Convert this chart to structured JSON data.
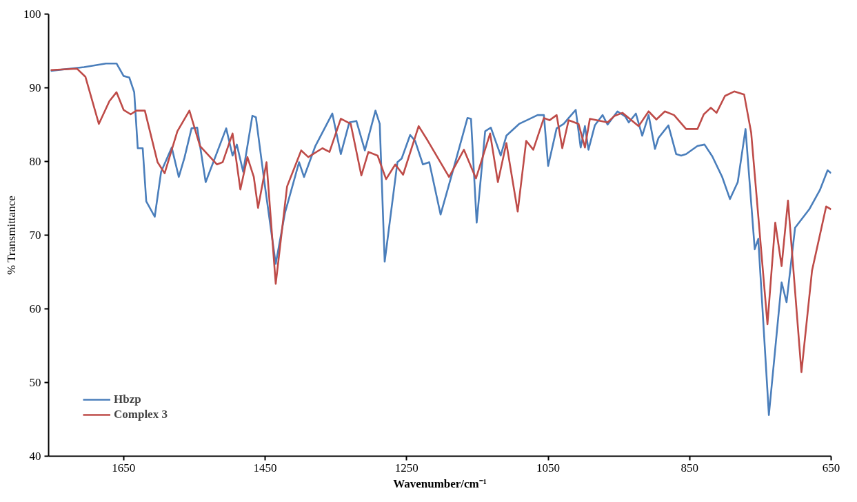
{
  "chart_data": {
    "type": "line",
    "xlabel": "Wavenumber/cm⁻¹",
    "ylabel": "% Transmittance",
    "xlim": [
      1756,
      650
    ],
    "ylim": [
      40,
      100
    ],
    "xticks": [
      1650,
      1450,
      1250,
      1050,
      850,
      650
    ],
    "yticks": [
      40,
      50,
      60,
      70,
      80,
      90,
      100
    ],
    "grid": false,
    "legend": "bottom left",
    "marker": "none",
    "line_style": "solid",
    "series": [
      {
        "name": "Hbzp",
        "color": "#4a7ebb",
        "x": [
          1753,
          1706,
          1675,
          1660,
          1650,
          1642,
          1635,
          1630,
          1623,
          1618,
          1606,
          1597,
          1582,
          1572,
          1564,
          1554,
          1546,
          1534,
          1505,
          1496,
          1490,
          1481,
          1468,
          1463,
          1451,
          1435,
          1422,
          1402,
          1395,
          1379,
          1355,
          1343,
          1331,
          1321,
          1309,
          1294,
          1288,
          1281,
          1263,
          1257,
          1245,
          1238,
          1227,
          1218,
          1202,
          1187,
          1164,
          1159,
          1151,
          1139,
          1131,
          1117,
          1109,
          1091,
          1065,
          1056,
          1050,
          1038,
          1028,
          1021,
          1011,
          1004,
          998,
          993,
          984,
          973,
          966,
          952,
          941,
          936,
          926,
          917,
          908,
          899,
          894,
          880,
          869,
          862,
          855,
          839,
          829,
          818,
          804,
          793,
          782,
          771,
          758,
          753,
          738,
          720,
          713,
          701,
          681,
          666,
          655,
          650
        ],
        "values": [
          92.3,
          92.8,
          93.3,
          93.3,
          91.6,
          91.4,
          89.4,
          81.8,
          81.8,
          74.6,
          72.5,
          78.6,
          81.9,
          77.9,
          80.5,
          84.5,
          84.6,
          77.2,
          84.5,
          80.8,
          82.3,
          78.6,
          86.2,
          86.0,
          77.2,
          66.1,
          73.0,
          79.9,
          77.9,
          82.1,
          86.5,
          81.0,
          85.3,
          85.5,
          81.5,
          86.9,
          85.1,
          66.4,
          79.9,
          80.4,
          83.6,
          82.8,
          79.6,
          79.9,
          72.8,
          77.9,
          85.9,
          85.8,
          71.7,
          84.1,
          84.6,
          80.8,
          83.5,
          85.1,
          86.3,
          86.3,
          79.4,
          84.5,
          85.1,
          85.9,
          87.0,
          81.9,
          84.8,
          81.6,
          84.9,
          86.3,
          85.0,
          86.8,
          86.1,
          85.3,
          86.5,
          83.5,
          86.3,
          81.7,
          83.2,
          84.9,
          81.0,
          80.8,
          81.0,
          82.1,
          82.3,
          80.7,
          77.9,
          74.9,
          77.2,
          84.4,
          68.1,
          69.5,
          45.6,
          63.6,
          60.9,
          71.0,
          73.5,
          76.1,
          78.8,
          78.4
        ]
      },
      {
        "name": "Complex 3",
        "color": "#be4b48",
        "x": [
          1753,
          1716,
          1704,
          1685,
          1670,
          1660,
          1650,
          1640,
          1632,
          1620,
          1602,
          1592,
          1574,
          1557,
          1542,
          1518,
          1510,
          1496,
          1485,
          1475,
          1466,
          1460,
          1448,
          1435,
          1419,
          1399,
          1389,
          1369,
          1359,
          1343,
          1329,
          1314,
          1304,
          1291,
          1279,
          1266,
          1255,
          1233,
          1220,
          1190,
          1169,
          1152,
          1132,
          1121,
          1109,
          1093,
          1081,
          1071,
          1056,
          1048,
          1038,
          1030,
          1021,
          1007,
          998,
          991,
          966,
          956,
          945,
          922,
          908,
          897,
          885,
          872,
          855,
          839,
          830,
          820,
          812,
          800,
          787,
          773,
          763,
          740,
          729,
          720,
          711,
          692,
          677,
          657,
          650
        ],
        "values": [
          92.4,
          92.6,
          91.5,
          85.1,
          88.2,
          89.4,
          87.0,
          86.4,
          86.9,
          86.9,
          79.9,
          78.4,
          84.1,
          86.9,
          82.1,
          79.6,
          79.9,
          83.8,
          76.2,
          80.6,
          77.9,
          73.7,
          79.9,
          63.4,
          76.6,
          81.5,
          80.6,
          81.8,
          81.3,
          85.8,
          85.1,
          78.1,
          81.3,
          80.8,
          77.6,
          79.6,
          78.2,
          84.8,
          82.8,
          77.9,
          81.6,
          77.7,
          83.8,
          77.2,
          82.5,
          73.2,
          82.8,
          81.6,
          85.9,
          85.6,
          86.3,
          81.8,
          85.6,
          85.1,
          81.9,
          85.8,
          85.3,
          86.2,
          86.6,
          84.8,
          86.8,
          85.7,
          86.8,
          86.3,
          84.4,
          84.4,
          86.4,
          87.3,
          86.6,
          88.9,
          89.5,
          89.1,
          83.9,
          57.9,
          71.7,
          65.8,
          74.7,
          51.4,
          65.2,
          73.9,
          73.5
        ]
      }
    ]
  }
}
